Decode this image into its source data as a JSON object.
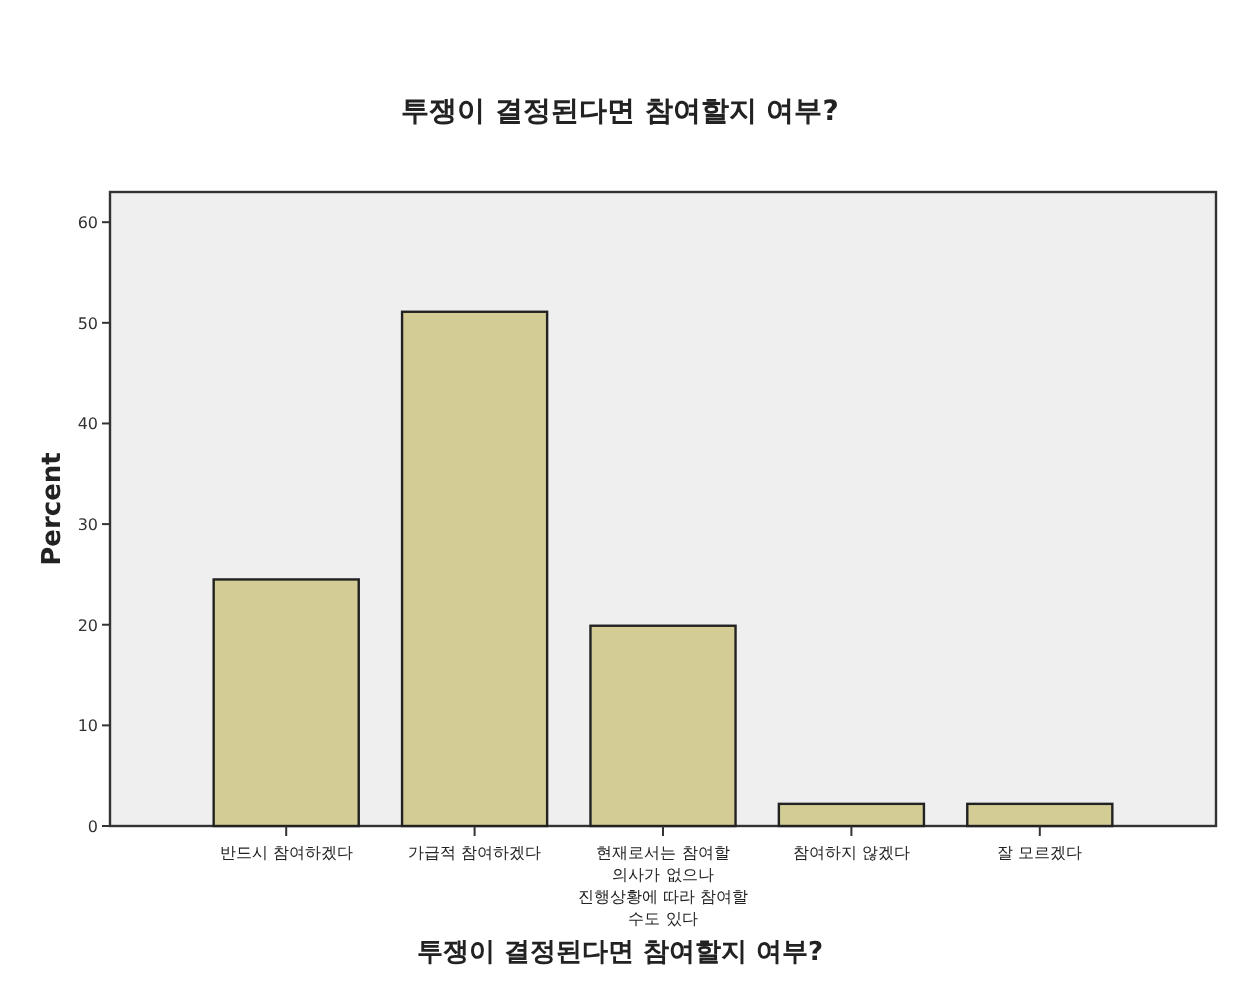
{
  "chart_data": {
    "type": "bar",
    "title": "투쟁이 결정된다면 참여할지 여부?",
    "xlabel": "투쟁이 결정된다면 참여할지 여부?",
    "ylabel": "Percent",
    "categories": [
      "반드시 참여하겠다",
      "가급적 참여하겠다",
      "현재로서는 참여할 의사가 없으나 진행상황에 따라 참여할 수도 있다",
      "참여하지 않겠다",
      "잘 모르겠다"
    ],
    "values": [
      24.5,
      51.1,
      19.9,
      2.2,
      2.2
    ],
    "color": "#d3cc95",
    "ylim": [
      0,
      63
    ],
    "yticks": [
      0,
      10,
      20,
      30,
      40,
      50,
      60
    ]
  }
}
